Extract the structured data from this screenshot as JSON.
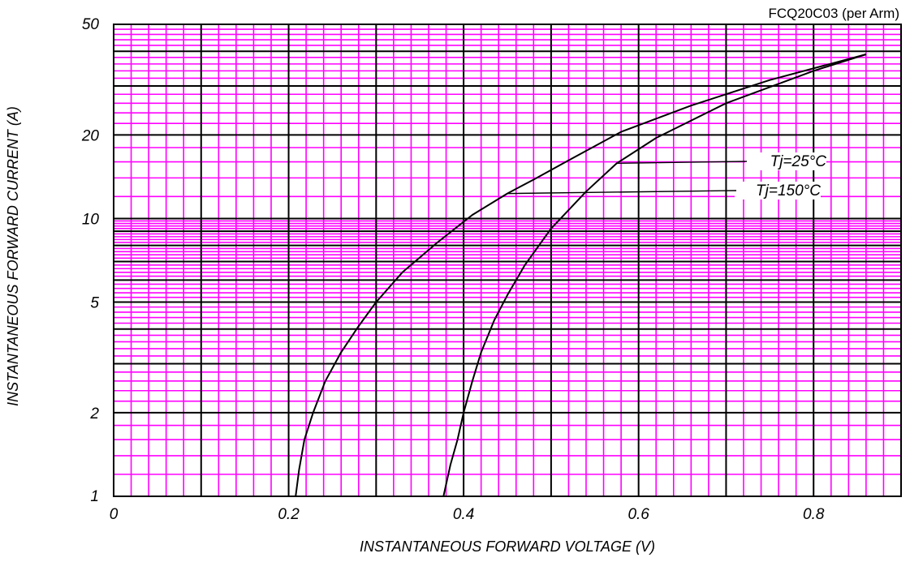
{
  "chart_data": {
    "type": "line",
    "title": "FCQ20C03 (per Arm)",
    "xlabel": "INSTANTANEOUS FORWARD VOLTAGE (V)",
    "ylabel": "INSTANTANEOUS FORWARD CURRENT (A)",
    "xlim": [
      0,
      0.9
    ],
    "ylim": [
      1,
      50
    ],
    "y_scale": "log",
    "x_ticks": [
      {
        "value": 0,
        "label": "0"
      },
      {
        "value": 0.2,
        "label": "0.2"
      },
      {
        "value": 0.4,
        "label": "0.4"
      },
      {
        "value": 0.6,
        "label": "0.6"
      },
      {
        "value": 0.8,
        "label": "0.8"
      }
    ],
    "y_ticks": [
      {
        "value": 1,
        "label": "1"
      },
      {
        "value": 2,
        "label": "2"
      },
      {
        "value": 5,
        "label": "5"
      },
      {
        "value": 10,
        "label": "10"
      },
      {
        "value": 20,
        "label": "20"
      },
      {
        "value": 50,
        "label": "50"
      }
    ],
    "grid": true,
    "grid_colors": {
      "major": "#000000",
      "minor": "#ff00ff"
    },
    "series": [
      {
        "name": "Tj=25°C",
        "color": "#000000",
        "x": [
          0.377,
          0.385,
          0.393,
          0.4,
          0.41,
          0.42,
          0.435,
          0.45,
          0.47,
          0.5,
          0.54,
          0.575,
          0.62,
          0.7,
          0.8,
          0.86
        ],
        "y": [
          1,
          1.3,
          1.6,
          2,
          2.6,
          3.3,
          4.3,
          5.3,
          6.8,
          9.2,
          12.5,
          15.8,
          19.5,
          26,
          34,
          39
        ]
      },
      {
        "name": "Tj=150°C",
        "color": "#000000",
        "x": [
          0.208,
          0.212,
          0.218,
          0.228,
          0.242,
          0.26,
          0.28,
          0.3,
          0.33,
          0.37,
          0.41,
          0.45,
          0.48,
          0.52,
          0.58,
          0.66,
          0.75,
          0.86
        ],
        "y": [
          1,
          1.25,
          1.6,
          2,
          2.6,
          3.3,
          4.1,
          5,
          6.4,
          8.2,
          10.3,
          12.3,
          13.8,
          16.2,
          20.5,
          25.5,
          31.5,
          39
        ]
      }
    ]
  }
}
